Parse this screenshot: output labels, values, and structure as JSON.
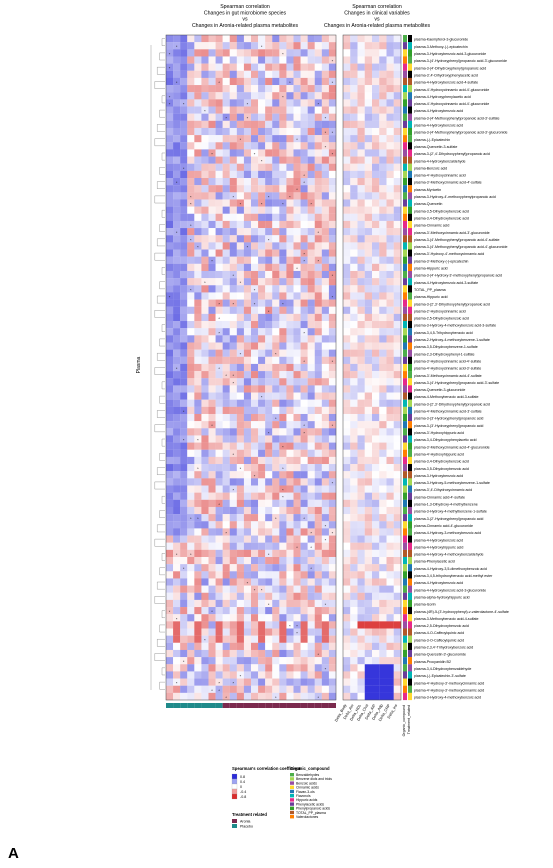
{
  "chart_data": {
    "type": "heatmap",
    "panel_letter": "A",
    "y_group_label": "Plasma",
    "left_title": [
      "Spearman correlation",
      "Changes in gut microbiome species",
      "vs",
      "Changes in Aronia-related plasma metabolites"
    ],
    "right_title": [
      "Spearman correlation",
      "Changes in clinical variables",
      "vs",
      "Changes in Aronia-related plasma metabolites"
    ],
    "rows": [
      "plasma-Kaempferol-3-glucuronide",
      "plasma-3-Methoxy-(-)-epicatechin",
      "plasma-3-Hydroxybenzoic acid-3-glucuronide",
      "plasma-3-(4'-Hydroxyphenyl)propanoic acid-3'-glucuronide",
      "plasma-3-(4'-Dihydroxyphenyl)propanoic acid",
      "plasma-3',4'-Dihydroxyphenylacetic acid",
      "plasma-4-Hydroxybenzoic acid-4-sulfate",
      "plasma-4'-Hydroxycinnamic acid-4'-glucuronide",
      "plasma-4-Hydroxyphenylacetic acid",
      "plasma-4'-Hydroxycinnamic acid-4'-glucuronide",
      "plasma-4-Hydroxybenzoic acid",
      "plasma-3-(4'-Methoxyphenyl)propanoic acid-3'-sulfate",
      "plasma-4-Hydroxybenzoic acid",
      "plasma-3-(4'-Methoxyphenyl)propanoic acid-3'-glucuronide",
      "plasma-(-)-Epicatechin",
      "plasma-Quercetin-3-sulfate",
      "plasma-3-(2',4'-Dihydroxyphenyl)propanoic acid",
      "plasma-4-Hydroxybenzaldehyde",
      "plasma-Benzoic acid",
      "plasma-4'-Hydroxycinnamic acid",
      "plasma-3'-Methoxycinnamic acid-4'-sulfate",
      "plasma-Myricetin",
      "plasma-3-Hydroxy-4'-methoxyphenylpropanoic acid",
      "plasma-Quercetin",
      "plasma-3,5-Dihydroxybenzoic acid",
      "plasma-3,4-Dihydroxybenzoic acid",
      "plasma-Cinnamic acid",
      "plasma-3'-Methoxycinnamic acid-3'-glucuronide",
      "plasma-3-(4'-Methoxyphenyl)propanoic acid-4'-sulfate",
      "plasma-3-(4'-Methoxyphenyl)propanoic acid-4'-glucuronide",
      "plasma-3'-Hydroxy-4'-methoxycinnamic acid",
      "plasma-3'-Methoxy-(-)-epicatechin",
      "plasma-Hippuric acid",
      "plasma-3-(4'-Hydroxy-3'-methoxyphenyl)propanoic acid",
      "plasma-4-Hydroxybenzoic acid-3-sulfate",
      "TOTAL_PP_plasma",
      "plasma-Hippuric acid",
      "plasma-3-(2',3'-Dihydroxyphenyl)propanoic acid",
      "plasma-2'-Hydroxycinnamic acid",
      "plasma-2,5-Dihydroxybenzoic acid",
      "plasma-3-Hydroxy-4-methoxybenzoic acid-3-sulfate",
      "plasma-3,4,5-Trihydroxybenzoic acid",
      "plasma-2-Hydroxy-4-methoxybenzene-1-sulfate",
      "plasma-3,5-Dihydroxybenzene-1-sulfate",
      "plasma-2,3-Dihydroxyphenyl-1-sulfate",
      "plasma-3'-Hydroxycinnamic acid-4'-sulfate",
      "plasma-4'-Hydroxycinnamic acid-3'-sulfate",
      "plasma-3'-Methoxycinnamic acid-4'-sulfate",
      "plasma-3-(4'-Hydroxyphenyl)propanoic acid-3'-sulfate",
      "plasma-Quercetin-3-glucuronide",
      "plasma-4-Methoxybenzoic acid-3-sulfate",
      "plasma-3-(2',3'-Dihydroxyphenyl)propanoic acid",
      "plasma-4'-Methoxycinnamic acid-3'-sulfate",
      "plasma-3-(3'-Hydroxyphenyl)propanoic acid",
      "plasma-3-(3'-Hydroxyphenyl)propanoic acid",
      "plasma-3'-Hydroxyhippuric acid",
      "plasma-3,4-Dihydroxyphenylacetic acid",
      "plasma-3'-Methoxycinnamic acid-4'-glucuronide",
      "plasma-4'-Hydroxyhippuric acid",
      "plasma-3,4-Dihydroxybenzoic acid",
      "plasma-3,5-Dihydroxybenzoic acid",
      "plasma-3-Hydroxybenzoic acid",
      "plasma-3-Hydroxy-5-methoxybenzene-1-sulfate",
      "plasma-3',4'-Dihydroxycinnamic acid",
      "plasma-Cinnamic acid-4'-sulfate",
      "plasma-1,3-Dihydroxy-4-methylbenzene",
      "plasma-3-Hydroxy-4-methylbenzene-1-sulfate",
      "plasma-3-(2'-Hydroxyphenyl)propanoic acid",
      "plasma-Cinnamic acid-4'-glucuronide",
      "plasma-4-Hydroxy-3-methoxybenzoic acid",
      "plasma-4-Hydroxybenzoic acid",
      "plasma-4-Hydroxyhippuric acid",
      "plasma-4-Hydroxy-4-methoxybenzaldehyde",
      "plasma-Phenylacetic acid",
      "plasma-4-Hydroxy-3,5-dimethoxybenzoic acid",
      "plasma-3,4,5-trihydroxybenzoic acid-methyl ester",
      "plasma-4-Hydroxybenzoic acid",
      "plasma-4-Hydroxybenzoic acid-3-glucuronide",
      "plasma-alpha-hydroxyhippuric acid",
      "plasma-Isorin",
      "plasma-(4R)-5-(3'-hydroxyphenyl)-v-valerolactone-4'-sulfate",
      "plasma-3-Methoxybenzoic acid-4-sulfate",
      "plasma-2,5-Dihydroxybenzoic acid",
      "plasma-4-O-Caffeoylquinic acid",
      "plasma-3-O-Caffeoylquinic acid",
      "plasma-2,3,4'-Trihydroxybenzoic acid",
      "plasma-Quercetin-3'-glucuronide",
      "plasma-Procyanidin B2",
      "plasma-3,4-Dihydroxybenzaldehyde",
      "plasma-(-)-Epicatechin-3'-sulfate",
      "plasma-4'-Hydroxy-3'-methoxycinnamic acid",
      "plasma-4'-Hydroxy-3'-methoxycinnamic acid",
      "plasma-3-Hydroxy-4-methoxybenzoic acid"
    ],
    "columns_left_count": 24,
    "columns_right_count": 8,
    "right_column_labels": [
      "Delta_Body",
      "Delta_Aer",
      "Delta_HDL",
      "Delta_Chol",
      "Delta_AIP",
      "Delta_Adp",
      "Delta_CRP",
      "Delta_Ins"
    ],
    "side_annotation_labels": [
      "Organic_compound",
      "Treatment_related"
    ],
    "legend_coef": {
      "title": "Spearman's correlation coefficient",
      "ticks": [
        "0.8",
        "0.4",
        "0",
        "-0.4",
        "-0.8"
      ],
      "colors": [
        "#2b2bd9",
        "#9da3f2",
        "#ffffff",
        "#f29a9a",
        "#d92b2b"
      ]
    },
    "legend_compound": {
      "title": "Organic_compound",
      "items": [
        {
          "label": "Benzaldehydes",
          "color": "#4daf4a"
        },
        {
          "label": "Benzene diols and triols",
          "color": "#a6d854"
        },
        {
          "label": "Benzoic acids",
          "color": "#984ea3"
        },
        {
          "label": "Cinnamic acids",
          "color": "#ffd92f"
        },
        {
          "label": "Flavan-3-ols",
          "color": "#1f78b4"
        },
        {
          "label": "Flavonols",
          "color": "#00b5b5"
        },
        {
          "label": "Hippuric acids",
          "color": "#e7298a"
        },
        {
          "label": "Phenylacetic acids",
          "color": "#6a3d9a"
        },
        {
          "label": "Phenylpropanoic acids",
          "color": "#33a02c"
        },
        {
          "label": "TOTAL_PP_plasma",
          "color": "#b15928"
        },
        {
          "label": "Valerolactones",
          "color": "#ff7f00"
        }
      ]
    },
    "legend_treatment": {
      "title": "Treatment related",
      "items": [
        {
          "label": "Aronia",
          "color": "#7b2a4e"
        },
        {
          "label": "Placebo",
          "color": "#1f8a8a"
        }
      ]
    },
    "colors": {
      "positive": "#2b2bd9",
      "negative": "#d92b2b",
      "neutral": "#ffffff"
    }
  }
}
